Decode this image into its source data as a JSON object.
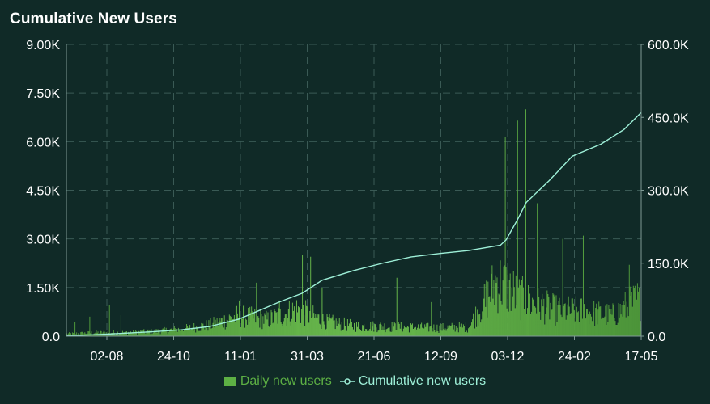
{
  "chart_data": {
    "type": "bar",
    "title": "Cumulative New Users",
    "x_tick_labels": [
      "02-08",
      "24-10",
      "11-01",
      "31-03",
      "21-06",
      "12-09",
      "03-12",
      "24-02",
      "17-05"
    ],
    "y_left": {
      "ticks": [
        "0.0",
        "1.50K",
        "3.00K",
        "4.50K",
        "6.00K",
        "7.50K",
        "9.00K"
      ],
      "range": [
        0,
        9000
      ]
    },
    "y_right": {
      "ticks": [
        "0.0",
        "150.0K",
        "300.0K",
        "450.0K",
        "600.0K"
      ],
      "range": [
        0,
        600000
      ]
    },
    "grid": true,
    "legend_position": "bottom-center",
    "series": [
      {
        "name": "Daily new users",
        "type": "bar",
        "axis": "left",
        "color": "#5db044",
        "anchors": [
          [
            0,
            80
          ],
          [
            0.05,
            120
          ],
          [
            0.1,
            130
          ],
          [
            0.15,
            160
          ],
          [
            0.2,
            240
          ],
          [
            0.25,
            380
          ],
          [
            0.3,
            700
          ],
          [
            0.35,
            550
          ],
          [
            0.4,
            900
          ],
          [
            0.45,
            500
          ],
          [
            0.5,
            350
          ],
          [
            0.55,
            330
          ],
          [
            0.6,
            300
          ],
          [
            0.65,
            280
          ],
          [
            0.7,
            320
          ],
          [
            0.75,
            1900
          ],
          [
            0.8,
            1200
          ],
          [
            0.85,
            900
          ],
          [
            0.9,
            850
          ],
          [
            0.95,
            700
          ],
          [
            1.0,
            1300
          ]
        ],
        "spikes": [
          [
            0.015,
            450
          ],
          [
            0.04,
            600
          ],
          [
            0.075,
            950
          ],
          [
            0.095,
            650
          ],
          [
            0.3,
            1100
          ],
          [
            0.33,
            1650
          ],
          [
            0.37,
            1100
          ],
          [
            0.41,
            2500
          ],
          [
            0.425,
            2450
          ],
          [
            0.445,
            1500
          ],
          [
            0.575,
            1800
          ],
          [
            0.635,
            1050
          ],
          [
            0.73,
            900
          ],
          [
            0.764,
            6150
          ],
          [
            0.786,
            6650
          ],
          [
            0.8,
            7000
          ],
          [
            0.82,
            4100
          ],
          [
            0.864,
            3000
          ],
          [
            0.9,
            3100
          ],
          [
            0.98,
            2200
          ]
        ]
      },
      {
        "name": "Cumulative new users",
        "type": "line",
        "axis": "right",
        "color": "#9ef0d8",
        "points": [
          [
            0,
            1000
          ],
          [
            0.05,
            3000
          ],
          [
            0.1,
            6000
          ],
          [
            0.15,
            9000
          ],
          [
            0.2,
            13000
          ],
          [
            0.25,
            20000
          ],
          [
            0.3,
            35000
          ],
          [
            0.33,
            50000
          ],
          [
            0.37,
            70000
          ],
          [
            0.41,
            88000
          ],
          [
            0.445,
            115000
          ],
          [
            0.5,
            135000
          ],
          [
            0.55,
            150000
          ],
          [
            0.6,
            163000
          ],
          [
            0.65,
            170000
          ],
          [
            0.7,
            176000
          ],
          [
            0.755,
            187000
          ],
          [
            0.765,
            198000
          ],
          [
            0.785,
            240000
          ],
          [
            0.8,
            275000
          ],
          [
            0.84,
            320000
          ],
          [
            0.88,
            370000
          ],
          [
            0.93,
            395000
          ],
          [
            0.97,
            425000
          ],
          [
            1.0,
            460000
          ]
        ]
      }
    ]
  },
  "legend": {
    "items": [
      {
        "label": "Daily new users"
      },
      {
        "label": "Cumulative new users"
      }
    ]
  }
}
